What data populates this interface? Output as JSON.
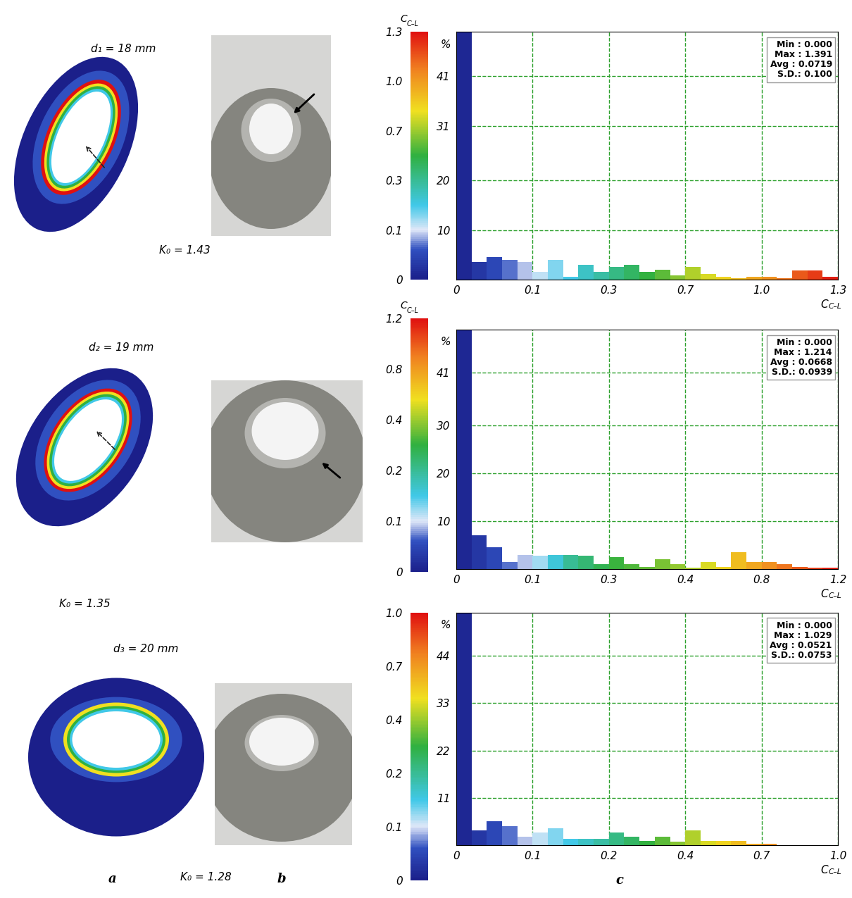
{
  "panel_labels": [
    "a",
    "b",
    "c"
  ],
  "chart_data": [
    {
      "type": "histogram",
      "diameter_label": "d₁ = 18 mm",
      "k_label": "K₀ = 1.43",
      "colorbar_label": "C",
      "colorbar_label_sub": "C–L",
      "colorbar_range": [
        0,
        1.3
      ],
      "colorbar_ticks": [
        0,
        0.1,
        0.3,
        0.7,
        {
          "value": 1,
          "label": "1.0"
        },
        1.3
      ],
      "xlabel": "C",
      "xlabel_sub": "C–L",
      "ylabel": "%",
      "bins": [
        0,
        0.02,
        0.04,
        0.06,
        0.08,
        0.1,
        0.14,
        0.18,
        0.22,
        0.26,
        0.3,
        0.38,
        0.46,
        0.54,
        0.62,
        0.7,
        0.76,
        0.82,
        0.88,
        0.94,
        1.0,
        1.06,
        1.12,
        1.18,
        1.24,
        1.3
      ],
      "counts": [
        57,
        3.5,
        4.5,
        4,
        3.5,
        1.5,
        4,
        0.5,
        3,
        1.5,
        2.5,
        3,
        1.5,
        2,
        0.8,
        2.5,
        1.2,
        0.5,
        0.3,
        0.5,
        0.5,
        0.3,
        1.8,
        1.8,
        0.5
      ],
      "xlim": [
        0,
        1.3
      ],
      "xticks": [
        0,
        0.1,
        0.3,
        0.7,
        {
          "value": 1,
          "label": "1.0"
        },
        1.3
      ],
      "ylim": [
        0,
        50
      ],
      "yticks": [
        10,
        20,
        31,
        41
      ],
      "grid": true,
      "stats": [
        "Min : 0.000",
        "Max : 1.391",
        "Avg : 0.0719",
        "S.D.: 0.100"
      ]
    },
    {
      "type": "histogram",
      "diameter_label": "d₂ = 19 mm",
      "k_label": "K₀ = 1.35",
      "colorbar_label": "C",
      "colorbar_label_sub": "C–L",
      "colorbar_range": [
        0,
        1.2
      ],
      "colorbar_ticks": [
        0,
        0.1,
        0.2,
        0.4,
        0.8,
        1.2
      ],
      "xlabel": "C",
      "xlabel_sub": "C–L",
      "ylabel": "%",
      "bins": [
        0,
        0.02,
        0.04,
        0.06,
        0.08,
        0.1,
        0.14,
        0.18,
        0.22,
        0.26,
        0.3,
        0.32,
        0.34,
        0.36,
        0.38,
        0.4,
        0.48,
        0.56,
        0.64,
        0.72,
        0.8,
        0.88,
        0.96,
        1.04,
        1.12,
        1.2
      ],
      "counts": [
        55,
        7,
        4.5,
        1.5,
        3,
        2.8,
        3,
        3,
        2.8,
        1,
        2.5,
        1,
        0.5,
        2,
        1,
        0.3,
        1.5,
        0.5,
        3.5,
        1.5,
        1.5,
        1,
        0.5,
        0.3,
        0.3
      ],
      "xlim": [
        0,
        1.2
      ],
      "xticks": [
        0,
        0.1,
        0.3,
        0.4,
        0.8,
        1.2
      ],
      "ylim": [
        0,
        50
      ],
      "yticks": [
        10,
        20,
        30,
        41
      ],
      "grid": true,
      "stats": [
        "Min : 0.000",
        "Max : 1.214",
        "Avg : 0.0668",
        "S.D.: 0.0939"
      ]
    },
    {
      "type": "histogram",
      "diameter_label": "d₃ = 20 mm",
      "k_label": "K₀ = 1.28",
      "colorbar_range": [
        0,
        1
      ],
      "colorbar_ticks": [
        0,
        0.1,
        0.2,
        0.4,
        0.7,
        {
          "value": 1,
          "label": "1.0"
        }
      ],
      "xlabel": "C",
      "xlabel_sub": "C–L",
      "ylabel": "%",
      "bins": [
        0,
        0.02,
        0.04,
        0.06,
        0.08,
        0.1,
        0.12,
        0.14,
        0.16,
        0.18,
        0.2,
        0.24,
        0.28,
        0.32,
        0.36,
        0.4,
        0.46,
        0.52,
        0.58,
        0.64,
        0.7,
        0.76,
        0.82,
        0.88,
        0.94,
        1.0
      ],
      "counts": [
        55,
        3.5,
        5.5,
        4.5,
        2,
        3,
        4,
        1.5,
        1.5,
        1.5,
        3,
        2,
        1,
        2,
        0.8,
        3.5,
        1,
        1,
        1,
        0.3,
        0.3,
        0,
        0,
        0,
        0
      ],
      "xlim": [
        0,
        1
      ],
      "xticks": [
        0,
        0.1,
        0.2,
        0.4,
        0.7,
        {
          "value": 1,
          "label": "1.0"
        }
      ],
      "ylim": [
        0,
        54
      ],
      "yticks": [
        11,
        22,
        33,
        44
      ],
      "grid": true,
      "stats": [
        "Min : 0.000",
        "Max : 1.029",
        "Avg : 0.0521",
        "S.D.: 0.0753"
      ]
    }
  ]
}
